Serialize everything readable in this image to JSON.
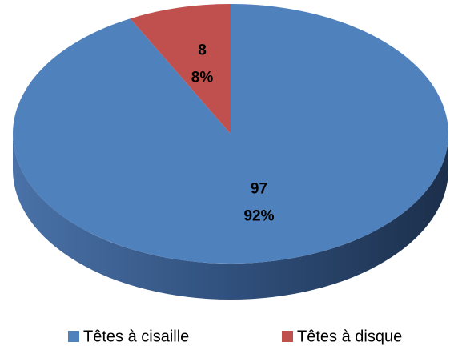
{
  "chart_data": {
    "type": "pie3d",
    "categories": [
      "Têtes à cisaille",
      "Têtes à disque"
    ],
    "values": [
      97,
      8
    ],
    "percentages": [
      92,
      8
    ],
    "percentage_labels": [
      "92%",
      "8%"
    ],
    "colors": [
      "#4f81bd",
      "#c0504d"
    ],
    "legend": "bottom"
  }
}
